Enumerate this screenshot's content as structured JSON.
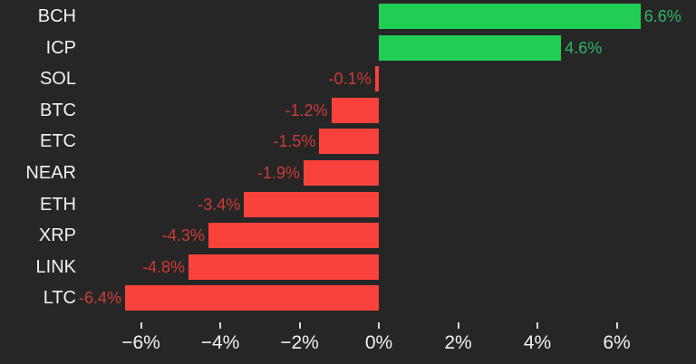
{
  "chart_data": {
    "type": "bar",
    "orientation": "horizontal",
    "title": "",
    "xlabel": "",
    "ylabel": "",
    "categories": [
      "BCH",
      "ICP",
      "SOL",
      "BTC",
      "ETC",
      "NEAR",
      "ETH",
      "XRP",
      "LINK",
      "LTC"
    ],
    "values": [
      6.6,
      4.6,
      -0.1,
      -1.2,
      -1.5,
      -1.9,
      -3.4,
      -4.3,
      -4.8,
      -6.4
    ],
    "value_labels": [
      "6.6%",
      "4.6%",
      "-0.1%",
      "-1.2%",
      "-1.5%",
      "-1.9%",
      "-3.4%",
      "-4.3%",
      "-4.8%",
      "-6.4%"
    ],
    "x_ticks": [
      {
        "value": -6,
        "label": "−6%"
      },
      {
        "value": -4,
        "label": "−4%"
      },
      {
        "value": -2,
        "label": "−2%"
      },
      {
        "value": 0,
        "label": "0%"
      },
      {
        "value": 2,
        "label": "2%"
      },
      {
        "value": 4,
        "label": "4%"
      },
      {
        "value": 6,
        "label": "6%"
      }
    ],
    "xlim": [
      -9.5,
      8
    ],
    "grid": false,
    "legend": "none",
    "colors": {
      "background": "#262626",
      "bar_positive": "#21ce55",
      "bar_negative": "#fa423c",
      "value_text_positive": "#2db563",
      "value_text_negative": "#cc3b36",
      "category_text": "#f2f2f2",
      "axis_text": "#f2f2f2",
      "tick_mark": "#d9d9d9"
    }
  }
}
